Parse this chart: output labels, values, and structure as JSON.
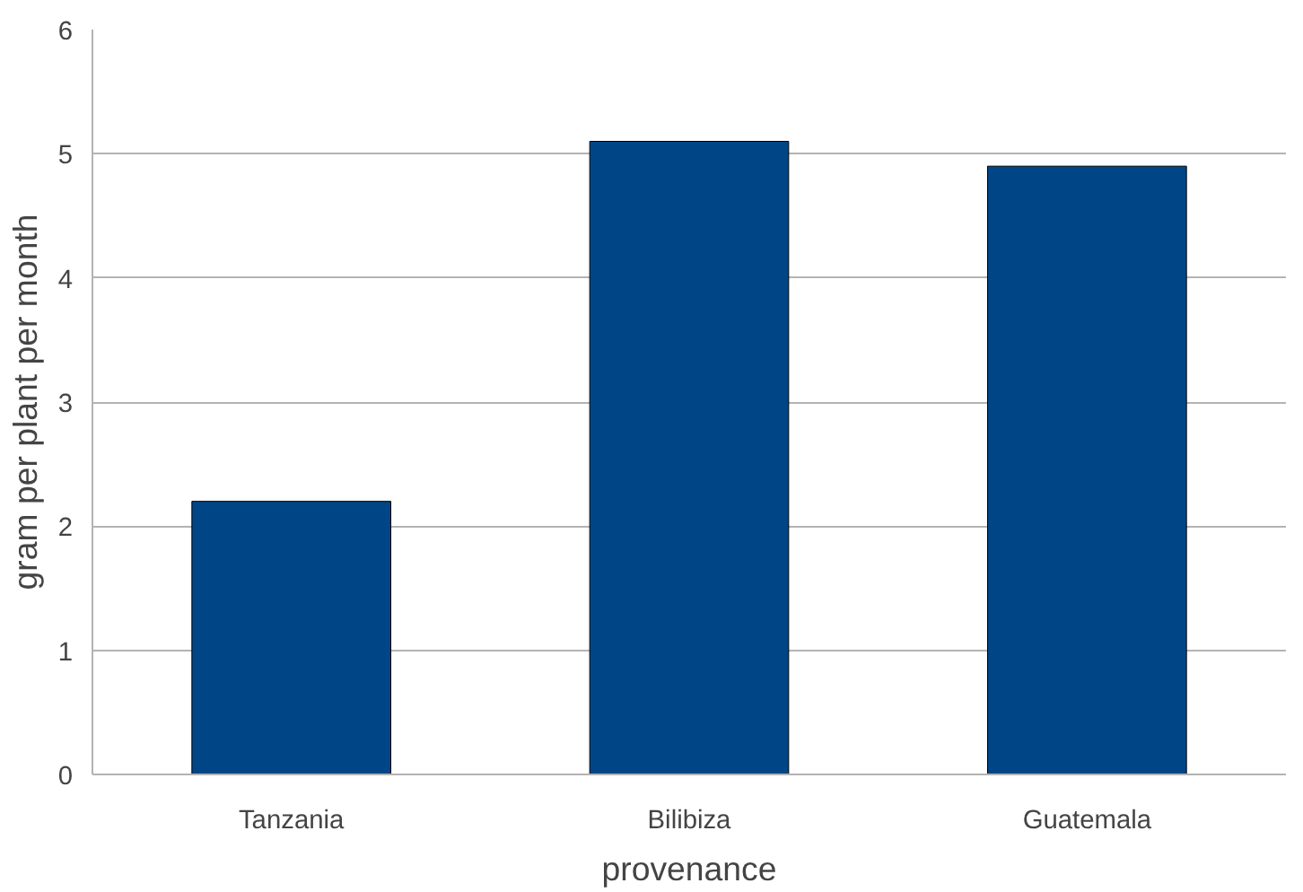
{
  "chart_data": {
    "type": "bar",
    "xlabel": "provenance",
    "ylabel": "gram per plant per month",
    "categories": [
      "Tanzania",
      "Bilibiza",
      "Guatemala"
    ],
    "values": [
      2.2,
      5.1,
      4.9
    ],
    "color": "#004586",
    "ylim": [
      0,
      6
    ],
    "yticks": [
      0,
      1,
      2,
      3,
      4,
      5,
      6
    ],
    "grid": "y"
  }
}
